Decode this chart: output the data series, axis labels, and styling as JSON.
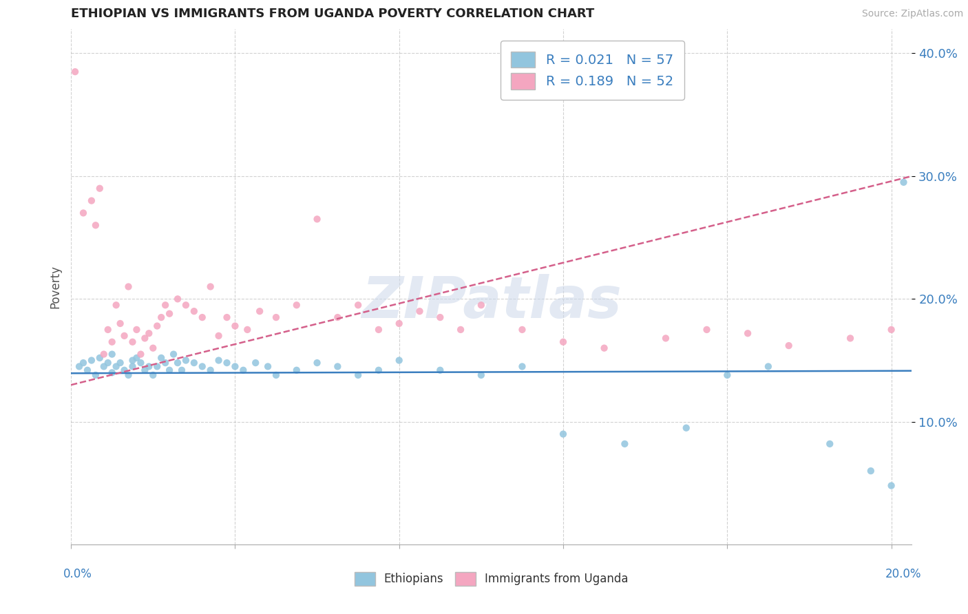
{
  "title": "ETHIOPIAN VS IMMIGRANTS FROM UGANDA POVERTY CORRELATION CHART",
  "source": "Source: ZipAtlas.com",
  "ylabel": "Poverty",
  "ylim": [
    0.0,
    0.42
  ],
  "xlim": [
    0.0,
    0.205
  ],
  "yticks": [
    0.1,
    0.2,
    0.3,
    0.4
  ],
  "ytick_labels": [
    "10.0%",
    "20.0%",
    "30.0%",
    "40.0%"
  ],
  "blue_R": 0.021,
  "blue_N": 57,
  "pink_R": 0.189,
  "pink_N": 52,
  "blue_color": "#92c5de",
  "pink_color": "#f4a6c0",
  "blue_line_color": "#3a7ebf",
  "pink_line_color": "#d45f8a",
  "watermark_text": "ZIPatlas",
  "legend_label_blue": "Ethiopians",
  "legend_label_pink": "Immigrants from Uganda",
  "blue_points_x": [
    0.002,
    0.003,
    0.004,
    0.005,
    0.006,
    0.007,
    0.008,
    0.009,
    0.01,
    0.01,
    0.011,
    0.012,
    0.013,
    0.014,
    0.015,
    0.015,
    0.016,
    0.017,
    0.018,
    0.019,
    0.02,
    0.021,
    0.022,
    0.023,
    0.024,
    0.025,
    0.026,
    0.027,
    0.028,
    0.03,
    0.032,
    0.034,
    0.036,
    0.038,
    0.04,
    0.042,
    0.045,
    0.048,
    0.05,
    0.055,
    0.06,
    0.065,
    0.07,
    0.075,
    0.08,
    0.09,
    0.1,
    0.11,
    0.12,
    0.135,
    0.15,
    0.16,
    0.17,
    0.185,
    0.195,
    0.2,
    0.203
  ],
  "blue_points_y": [
    0.145,
    0.148,
    0.142,
    0.15,
    0.138,
    0.152,
    0.145,
    0.148,
    0.14,
    0.155,
    0.145,
    0.148,
    0.142,
    0.138,
    0.15,
    0.145,
    0.152,
    0.148,
    0.142,
    0.145,
    0.138,
    0.145,
    0.152,
    0.148,
    0.142,
    0.155,
    0.148,
    0.142,
    0.15,
    0.148,
    0.145,
    0.142,
    0.15,
    0.148,
    0.145,
    0.142,
    0.148,
    0.145,
    0.138,
    0.142,
    0.148,
    0.145,
    0.138,
    0.142,
    0.15,
    0.142,
    0.138,
    0.145,
    0.09,
    0.082,
    0.095,
    0.138,
    0.145,
    0.082,
    0.06,
    0.048,
    0.295
  ],
  "pink_points_x": [
    0.001,
    0.003,
    0.005,
    0.006,
    0.007,
    0.008,
    0.009,
    0.01,
    0.011,
    0.012,
    0.013,
    0.014,
    0.015,
    0.016,
    0.017,
    0.018,
    0.019,
    0.02,
    0.021,
    0.022,
    0.023,
    0.024,
    0.026,
    0.028,
    0.03,
    0.032,
    0.034,
    0.036,
    0.038,
    0.04,
    0.043,
    0.046,
    0.05,
    0.055,
    0.06,
    0.065,
    0.07,
    0.075,
    0.08,
    0.085,
    0.09,
    0.095,
    0.1,
    0.11,
    0.12,
    0.13,
    0.145,
    0.155,
    0.165,
    0.175,
    0.19,
    0.2
  ],
  "pink_points_y": [
    0.385,
    0.27,
    0.28,
    0.26,
    0.29,
    0.155,
    0.175,
    0.165,
    0.195,
    0.18,
    0.17,
    0.21,
    0.165,
    0.175,
    0.155,
    0.168,
    0.172,
    0.16,
    0.178,
    0.185,
    0.195,
    0.188,
    0.2,
    0.195,
    0.19,
    0.185,
    0.21,
    0.17,
    0.185,
    0.178,
    0.175,
    0.19,
    0.185,
    0.195,
    0.265,
    0.185,
    0.195,
    0.175,
    0.18,
    0.19,
    0.185,
    0.175,
    0.195,
    0.175,
    0.165,
    0.16,
    0.168,
    0.175,
    0.172,
    0.162,
    0.168,
    0.175
  ]
}
